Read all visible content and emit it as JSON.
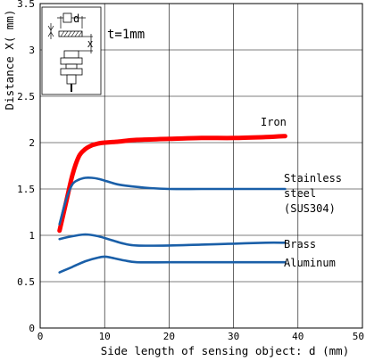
{
  "chart_data": {
    "type": "line",
    "xlabel": "Side length of sensing object: d (mm)",
    "ylabel": "Distance X( mm)",
    "xlim": [
      0,
      50
    ],
    "ylim": [
      0,
      3.5
    ],
    "xticks": [
      "0",
      "10",
      "20",
      "30",
      "40",
      "50"
    ],
    "yticks": [
      "0",
      "0.5",
      "1",
      "1.5",
      "2",
      "2.5",
      "3",
      "3.5"
    ],
    "grid": true,
    "annotation": "t=1mm",
    "inset_labels": {
      "d": "d",
      "x": "X"
    },
    "series": [
      {
        "name": "Iron",
        "label_lines": [
          "Iron"
        ],
        "color": "#ff0000",
        "x": [
          3,
          4,
          5,
          6,
          7,
          8,
          9,
          10,
          12,
          15,
          20,
          25,
          30,
          35,
          38
        ],
        "y": [
          1.05,
          1.35,
          1.65,
          1.85,
          1.93,
          1.97,
          1.99,
          2.0,
          2.01,
          2.03,
          2.04,
          2.05,
          2.05,
          2.06,
          2.07
        ]
      },
      {
        "name": "Stainless steel (SUS304)",
        "label_lines": [
          "Stainless",
          "steel",
          "(SUS304)"
        ],
        "color": "#1a5fa8",
        "x": [
          3,
          4,
          5,
          6,
          7,
          8,
          9,
          10,
          12,
          14,
          17,
          20,
          25,
          30,
          35,
          38
        ],
        "y": [
          1.12,
          1.38,
          1.55,
          1.6,
          1.62,
          1.62,
          1.61,
          1.59,
          1.55,
          1.53,
          1.51,
          1.5,
          1.5,
          1.5,
          1.5,
          1.5
        ]
      },
      {
        "name": "Brass",
        "label_lines": [
          "Brass"
        ],
        "color": "#1a5fa8",
        "x": [
          3,
          5,
          7,
          9,
          11,
          13,
          15,
          20,
          25,
          30,
          35,
          38
        ],
        "y": [
          0.96,
          0.99,
          1.01,
          0.99,
          0.95,
          0.91,
          0.89,
          0.89,
          0.9,
          0.91,
          0.92,
          0.92
        ]
      },
      {
        "name": "Aluminum",
        "label_lines": [
          "Aluminum"
        ],
        "color": "#1a5fa8",
        "x": [
          3,
          5,
          7,
          9,
          10,
          11,
          13,
          15,
          20,
          25,
          30,
          35,
          38
        ],
        "y": [
          0.6,
          0.66,
          0.72,
          0.76,
          0.77,
          0.76,
          0.73,
          0.71,
          0.71,
          0.71,
          0.71,
          0.71,
          0.71
        ]
      }
    ]
  }
}
